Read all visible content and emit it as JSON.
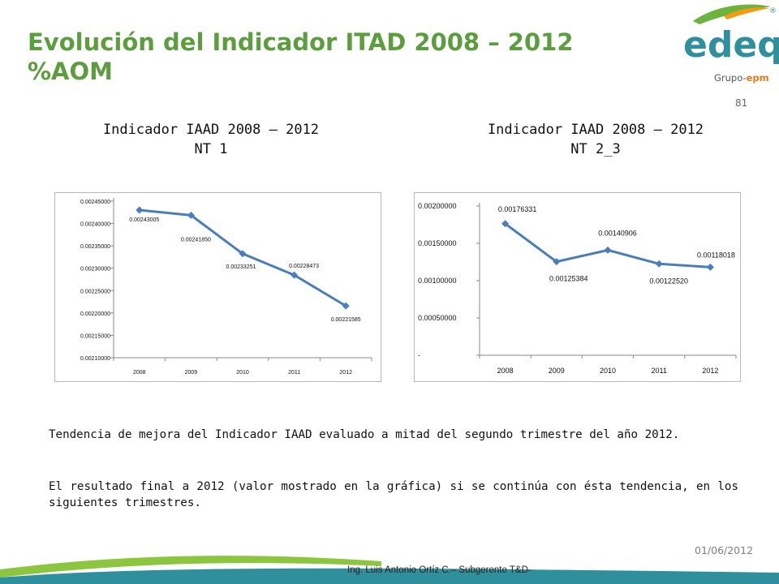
{
  "slide": {
    "title_line1": "Evolución del Indicador ITAD 2008 – 2012",
    "title_line2": "%AOM",
    "page_number": "81",
    "logo_text": "edeq",
    "logo_registered": "®",
    "logo_group_prefix": "Grupo-",
    "logo_group_suffix": "epm",
    "paragraph1": "Tendencia de mejora del Indicador IAAD evaluado a mitad del segundo trimestre del año 2012.",
    "paragraph2": "El resultado final a 2012 (valor mostrado en la gráfica) si se continúa con ésta tendencia, en los siguientes trimestres.",
    "date": "01/06/2012",
    "footer": "Ing. Luis Antonio Ortíz C.– Subgerente T&D-",
    "colors": {
      "title": "#5c9e3d",
      "series": "#4a7ebb",
      "logo_green": "#6db33f",
      "logo_teal": "#2f8f9d",
      "logo_orange": "#f39c12"
    }
  },
  "chart_data": [
    {
      "type": "line",
      "title_line1": "Indicador IAAD 2008 – 2012",
      "title_line2": "NT 1",
      "categories": [
        "2008",
        "2009",
        "2010",
        "2011",
        "2012"
      ],
      "values": [
        0.00243005,
        0.0024185,
        0.00233251,
        0.00228473,
        0.00221585
      ],
      "data_labels": [
        "0.00243005",
        "0.00241850",
        "0.00233251",
        "0.00228473",
        "0.00221585"
      ],
      "ylim": [
        0.0021,
        0.00245
      ],
      "yticks": [
        0.0021,
        0.00215,
        0.0022,
        0.00225,
        0.0023,
        0.00235,
        0.0024,
        0.00245
      ],
      "ytick_labels": [
        "0.00210000",
        "0.00215000",
        "0.00220000",
        "0.00225000",
        "0.00230000",
        "0.00235000",
        "0.00240000",
        "0.00245000"
      ],
      "grid": false,
      "legend": "none",
      "color": "#4a7ebb"
    },
    {
      "type": "line",
      "title_line1": "Indicador IAAD 2008 – 2012",
      "title_line2": "NT 2_3",
      "categories": [
        "2008",
        "2009",
        "2010",
        "2011",
        "2012"
      ],
      "values": [
        0.00176331,
        0.00125384,
        0.00140906,
        0.0012252,
        0.00118018
      ],
      "data_labels": [
        "0.00176331",
        "0.00125384",
        "0.00140906",
        "0.00122520",
        "0.00118018"
      ],
      "ylim": [
        0,
        0.002
      ],
      "yticks": [
        0,
        0.0005,
        0.001,
        0.0015,
        0.002
      ],
      "ytick_labels": [
        "-",
        "0.00050000",
        "0.00100000",
        "0.00150000",
        "0.00200000"
      ],
      "grid": false,
      "legend": "none",
      "color": "#4a7ebb"
    }
  ]
}
